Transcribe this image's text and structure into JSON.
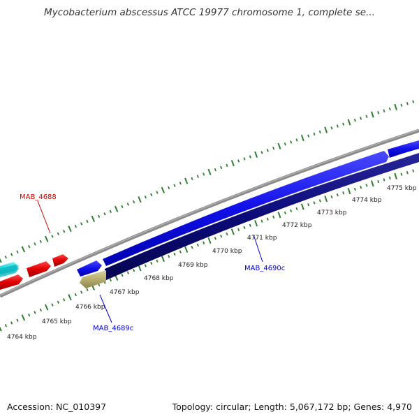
{
  "title": "Mycobacterium abscessus ATCC 19977 chromosome 1, complete se...",
  "footer": {
    "accession": "Accession: NC_010397",
    "summary": "Topology: circular; Length: 5,067,172 bp; Genes: 4,970"
  },
  "tick_labels": [
    "4764 kbp",
    "4765 kbp",
    "4766 kbp",
    "4767 kbp",
    "4768 kbp",
    "4769 kbp",
    "4770 kbp",
    "4771 kbp",
    "4772 kbp",
    "4773 kbp",
    "4774 kbp",
    "4775 kbp"
  ],
  "gene_labels": {
    "mab_4688": "MAB_4688",
    "mab_4689c": "MAB_4689c",
    "mab_4690c": "MAB_4690c"
  },
  "colors": {
    "forward_red": "#e00000",
    "forward_cyan": "#16d4dc",
    "blue": "#1010e8",
    "navy": "#0b0b78",
    "khaki": "#b8ad6e",
    "backbone": "#888888",
    "tick_green": "#2e7d2e",
    "label_red": "#cc0000",
    "label_blue": "#0000cc"
  }
}
